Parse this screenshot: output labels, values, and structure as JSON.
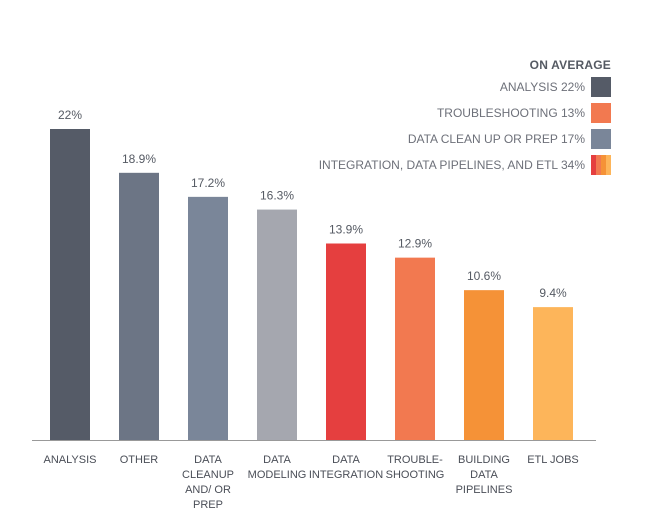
{
  "chart_data": {
    "type": "bar",
    "categories": [
      [
        "ANALYSIS"
      ],
      [
        "OTHER"
      ],
      [
        "DATA",
        "CLEANUP",
        "AND/ OR",
        "PREP"
      ],
      [
        "DATA",
        "MODELING"
      ],
      [
        "DATA",
        "INTEGRATION"
      ],
      [
        "TROUBLE-",
        "SHOOTING"
      ],
      [
        "BUILDING",
        "DATA",
        "PIPELINES"
      ],
      [
        "ETL JOBS"
      ]
    ],
    "values": [
      22,
      18.9,
      17.2,
      16.3,
      13.9,
      12.9,
      10.6,
      9.4
    ],
    "value_labels": [
      "22%",
      "18.9%",
      "17.2%",
      "16.3%",
      "13.9%",
      "12.9%",
      "10.6%",
      "9.4%"
    ],
    "bar_colors": [
      "#555b67",
      "#6c7585",
      "#7a8699",
      "#a5a7af",
      "#e53f3f",
      "#f27950",
      "#f59237",
      "#fdb55a"
    ],
    "ylim": [
      0,
      24
    ],
    "grid": false,
    "legend_position": "top-right"
  },
  "legend": {
    "title": "ON AVERAGE",
    "items": [
      {
        "label": "ANALYSIS 22%",
        "colors": [
          "#555b67"
        ]
      },
      {
        "label": "TROUBLESHOOTING 13%",
        "colors": [
          "#f27950"
        ]
      },
      {
        "label": "DATA CLEAN UP OR PREP 17%",
        "colors": [
          "#7a8699"
        ]
      },
      {
        "label": "INTEGRATION, DATA PIPELINES, AND ETL 34%",
        "colors": [
          "#e53f3f",
          "#f27950",
          "#f59237",
          "#fdb55a"
        ]
      }
    ]
  },
  "colors": {
    "axis": "#999999",
    "value_text": "#555a63",
    "category_text": "#4a4e57"
  }
}
